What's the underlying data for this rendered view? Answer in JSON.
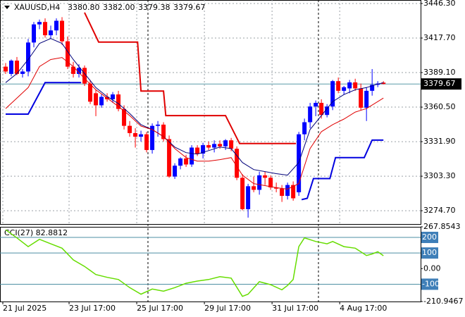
{
  "chart_data": [
    {
      "type": "candlestick",
      "title": "XAUUSD,H4",
      "quote": [
        "3380.80",
        "3382.00",
        "3379.38",
        "3379.67"
      ],
      "xlim": [
        -1,
        73.6
      ],
      "xticks": [
        {
          "value": -0.5,
          "label": "21 Jul 2025"
        },
        {
          "value": 11.25,
          "label": "23 Jul 17:00"
        },
        {
          "value": 23.25,
          "label": "25 Jul 17:00"
        },
        {
          "value": 35.25,
          "label": "29 Jul 17:00"
        },
        {
          "value": 47.25,
          "label": "31 Jul 17:00"
        },
        {
          "value": 59.25,
          "label": "4 Aug 17:00"
        }
      ],
      "ylim": [
        3263.7,
        3449.2
      ],
      "yticks": [
        {
          "value": 3446.3,
          "label": "3446.30"
        },
        {
          "value": 3417.7,
          "label": "3417.70"
        },
        {
          "value": 3389.1,
          "label": "3389.10"
        },
        {
          "value": 3360.5,
          "label": "3360.50"
        },
        {
          "value": 3331.9,
          "label": "3331.90"
        },
        {
          "value": 3303.3,
          "label": "3303.30"
        },
        {
          "value": 3274.7,
          "label": "3274.70"
        }
      ],
      "grid": true,
      "up_color": "#0000ff",
      "down_color": "#ff0000",
      "open": [
        3394,
        3388,
        3399,
        3388,
        3390,
        3414,
        3429,
        3431,
        3420,
        3424,
        3432,
        3415,
        3394,
        3388,
        3393,
        3380,
        3372,
        3362,
        3369,
        3367,
        3371,
        3359,
        3345,
        3339,
        3336,
        3338,
        3325,
        3345,
        3346,
        3334,
        3303,
        3312,
        3318,
        3313,
        3327,
        3322,
        3329,
        3327,
        3330,
        3328,
        3333,
        3326,
        3302,
        3276,
        3295,
        3292,
        3304,
        3302,
        3294,
        3293,
        3287,
        3296,
        3290,
        3338,
        3348,
        3361,
        3364,
        3354,
        3361,
        3382,
        3374,
        3376,
        3381,
        3376,
        3360,
        3374,
        3379,
        3380.8
      ],
      "high": [
        3397,
        3400,
        3402,
        3392,
        3417,
        3431,
        3433,
        3434,
        3428,
        3434,
        3435,
        3419,
        3398,
        3396,
        3395,
        3383,
        3375,
        3371,
        3372,
        3373,
        3374,
        3362,
        3349,
        3343,
        3341,
        3340,
        3347,
        3349,
        3348,
        3337,
        3314,
        3319,
        3321,
        3329,
        3329,
        3331,
        3332,
        3333,
        3333,
        3334,
        3335,
        3328,
        3305,
        3297,
        3303,
        3307,
        3307,
        3304,
        3298,
        3296,
        3298,
        3299,
        3340,
        3351,
        3364,
        3366,
        3367,
        3363,
        3383,
        3385,
        3378,
        3383,
        3384,
        3380,
        3377,
        3392,
        3382,
        3382
      ],
      "low": [
        3388,
        3386,
        3387,
        3385,
        3386,
        3410,
        3425,
        3418,
        3417,
        3420,
        3412,
        3392,
        3385,
        3385,
        3378,
        3363,
        3353,
        3360,
        3365,
        3364,
        3357,
        3342,
        3336,
        3327,
        3332,
        3323,
        3322,
        3336,
        3332,
        3302,
        3301,
        3309,
        3311,
        3311,
        3320,
        3318,
        3325,
        3323,
        3326,
        3325,
        3324,
        3300,
        3275,
        3269,
        3290,
        3288,
        3296,
        3292,
        3290,
        3282,
        3284,
        3283,
        3287,
        3333,
        3343,
        3353,
        3351,
        3352,
        3358,
        3372,
        3371,
        3372,
        3374,
        3358,
        3349,
        3370,
        3377,
        3379.38
      ],
      "close": [
        3390,
        3399,
        3388,
        3390,
        3414,
        3429,
        3431,
        3420,
        3424,
        3432,
        3415,
        3394,
        3388,
        3393,
        3380,
        3365,
        3362,
        3369,
        3367,
        3371,
        3359,
        3345,
        3339,
        3336,
        3338,
        3325,
        3345,
        3346,
        3334,
        3303,
        3312,
        3318,
        3313,
        3327,
        3322,
        3329,
        3327,
        3330,
        3328,
        3333,
        3326,
        3302,
        3276,
        3295,
        3292,
        3304,
        3302,
        3294,
        3293,
        3287,
        3296,
        3285,
        3338,
        3348,
        3361,
        3364,
        3354,
        3361,
        3382,
        3374,
        3377,
        3381,
        3376,
        3360,
        3374,
        3379,
        3380,
        3379.67
      ],
      "last_price": {
        "value": 3379.67,
        "label": "3379.67"
      },
      "lines": [
        {
          "color": "#00007a",
          "x": [
            0,
            2,
            4,
            6,
            8,
            10,
            12,
            14,
            16,
            18,
            20,
            22,
            24,
            26,
            28,
            30,
            32,
            34,
            36,
            38,
            40,
            42,
            44,
            46,
            48,
            50,
            52,
            54,
            56,
            58,
            60,
            62,
            64,
            66,
            67
          ],
          "values": [
            3380.8,
            3388.3,
            3399.9,
            3413.2,
            3417.3,
            3413.2,
            3399.9,
            3388.3,
            3376.7,
            3369.2,
            3363.4,
            3355.2,
            3346,
            3341.9,
            3336.1,
            3327.4,
            3322.8,
            3321.6,
            3324.5,
            3327.4,
            3326.2,
            3314.6,
            3308.8,
            3307.1,
            3305.4,
            3304.2,
            3314.6,
            3341.9,
            3353.5,
            3365.1,
            3370.9,
            3374.9,
            3376.7,
            3379.6,
            3380.8
          ]
        },
        {
          "color": "#e00000",
          "x": [
            0,
            2,
            4,
            6,
            8,
            10,
            12,
            14,
            16,
            18,
            20,
            22,
            24,
            26,
            28,
            30,
            32,
            34,
            36,
            38,
            40,
            42,
            44,
            46,
            48,
            50,
            52,
            54,
            56,
            58,
            60,
            62,
            64,
            66,
            67
          ],
          "values": [
            3359.3,
            3368,
            3376.7,
            3394.1,
            3399.9,
            3401.6,
            3394.1,
            3384.2,
            3374.9,
            3368,
            3361,
            3353.5,
            3344.8,
            3341.9,
            3336.1,
            3326.2,
            3318.7,
            3315.8,
            3315.8,
            3317,
            3318.7,
            3304.2,
            3297.2,
            3295.5,
            3293.8,
            3292.6,
            3297.2,
            3326.2,
            3340.2,
            3346,
            3350.6,
            3356.4,
            3359.3,
            3365.1,
            3368
          ]
        },
        {
          "color": "#e00000",
          "x": [
            14,
            16.5,
            23.4,
            24,
            28,
            28.4,
            39,
            41.5,
            51.5
          ],
          "values": [
            3438.8,
            3414.4,
            3414.4,
            3373.8,
            3373.8,
            3353.5,
            3353.5,
            3330.3,
            3330.3
          ]
        },
        {
          "color": "#0000e0",
          "x": [
            0,
            4,
            7,
            13.4,
            null,
            52.5,
            53.5,
            54.6,
            57.5,
            58.5,
            63.6,
            65,
            67
          ],
          "values": [
            3354.7,
            3354.7,
            3380.8,
            3380.8,
            null,
            3283.9,
            3285,
            3301.3,
            3301.3,
            3318.7,
            3318.7,
            3333.2,
            3333.2
          ]
        }
      ]
    },
    {
      "type": "line",
      "title": "CCI(27) 82.8812",
      "color": "#66dd00",
      "xlim": [
        -1,
        73.6
      ],
      "ylim": [
        -210.9467,
        267.8543
      ],
      "yticks": [
        267.8543,
        {
          "value": 0,
          "label": "0.00"
        },
        -210.9467
      ],
      "levels": [
        200,
        100,
        -100
      ],
      "x": [
        0,
        2,
        4,
        6,
        8,
        10,
        12,
        14,
        16,
        18,
        20,
        22,
        24,
        26,
        28,
        30,
        32,
        34,
        36,
        38,
        40,
        42,
        43,
        45,
        47,
        49,
        50,
        51,
        52,
        53,
        55,
        57,
        58,
        60,
        62,
        64,
        65,
        66,
        67
      ],
      "values": [
        249,
        197,
        141,
        188,
        159,
        131,
        56,
        14,
        -38,
        -56,
        -70,
        -122,
        -164,
        -131,
        -145,
        -122,
        -94,
        -80,
        -70,
        -52,
        -61,
        -178,
        -164,
        -84,
        -103,
        -136,
        -108,
        -70,
        141,
        197,
        174,
        159,
        174,
        141,
        131,
        84,
        94,
        108,
        82.8812
      ]
    }
  ]
}
